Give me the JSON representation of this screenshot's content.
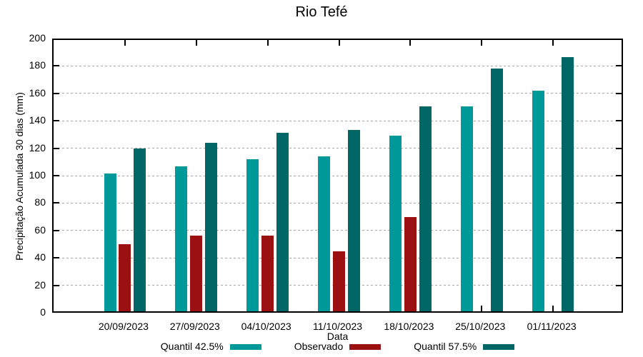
{
  "chart_data": {
    "type": "bar",
    "title": "Rio Tefé",
    "xlabel": "Data",
    "ylabel": "Precipitação Acumulada 30 dias (mm)",
    "categories": [
      "20/09/2023",
      "27/09/2023",
      "04/10/2023",
      "11/10/2023",
      "18/10/2023",
      "25/10/2023",
      "01/11/2023"
    ],
    "series": [
      {
        "name": "Quantil 42.5%",
        "color": "#009999",
        "values": [
          100.5,
          105.5,
          111,
          113,
          128,
          149.5,
          161
        ]
      },
      {
        "name": "Observado",
        "color": "#9B1111",
        "values": [
          49,
          55,
          55,
          44,
          68.5,
          null,
          null
        ]
      },
      {
        "name": "Quantil 57.5%",
        "color": "#006666",
        "values": [
          118.5,
          123,
          130,
          132.5,
          149.5,
          177,
          185.5
        ]
      }
    ],
    "ylim": [
      0,
      200
    ],
    "ytick_step": 20,
    "yticks": [
      0,
      20,
      40,
      60,
      80,
      100,
      120,
      140,
      160,
      180,
      200
    ],
    "grid": true,
    "grid_color": "#a8a8a8",
    "background_color": "#ffffff",
    "legend_position": "bottom"
  }
}
